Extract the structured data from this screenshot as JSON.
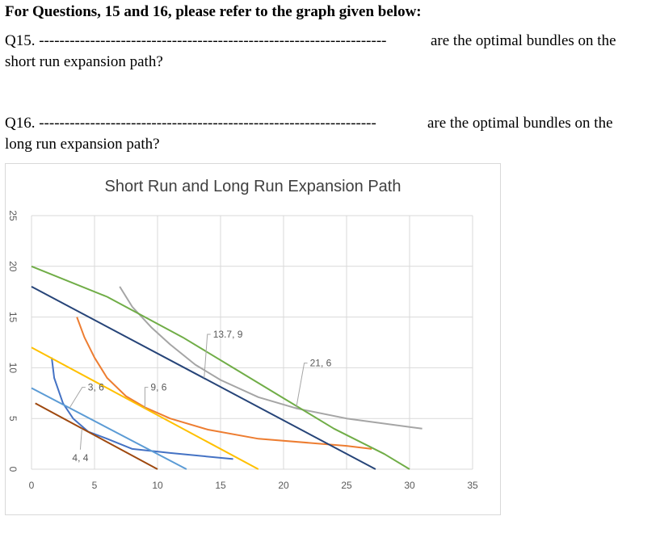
{
  "document": {
    "heading": "For Questions, 15 and 16, please refer to the graph given below:",
    "q15": {
      "number": "Q15.",
      "blank": "--------------------------------------------------------------------",
      "suffix": " are the optimal bundles on the",
      "continuation": "short run expansion path?"
    },
    "q16": {
      "number": "Q16.",
      "blank": "------------------------------------------------------------------",
      "suffix": " are the optimal bundles on the",
      "continuation": "long run expansion path?"
    }
  },
  "chart_data": {
    "type": "line",
    "title": "Short Run and Long Run Expansion Path",
    "xlabel": "",
    "ylabel": "",
    "xlim": [
      0,
      35
    ],
    "ylim": [
      0,
      25
    ],
    "x_ticks": [
      0,
      5,
      10,
      15,
      20,
      25,
      30,
      35
    ],
    "y_ticks": [
      0,
      5,
      10,
      15,
      20,
      25
    ],
    "grid": true,
    "legend": "none",
    "series": [
      {
        "color": "#4472c4",
        "points": [
          [
            1.6,
            11
          ],
          [
            1.8,
            9
          ],
          [
            2.5,
            6.5
          ],
          [
            3.3,
            5
          ],
          [
            4.5,
            3.7
          ],
          [
            6,
            3
          ],
          [
            8,
            2
          ],
          [
            11,
            1.6
          ],
          [
            16,
            1
          ]
        ]
      },
      {
        "color": "#ed7d31",
        "points": [
          [
            3.6,
            15
          ],
          [
            4.2,
            13
          ],
          [
            5,
            11
          ],
          [
            6,
            9
          ],
          [
            7.5,
            7.2
          ],
          [
            9,
            6.1
          ],
          [
            11,
            5
          ],
          [
            14,
            3.9
          ],
          [
            18,
            3
          ],
          [
            25,
            2.3
          ],
          [
            27,
            2
          ]
        ]
      },
      {
        "color": "#a5a5a5",
        "points": [
          [
            7,
            18
          ],
          [
            8,
            16
          ],
          [
            9.5,
            14
          ],
          [
            11,
            12.3
          ],
          [
            13,
            10.3
          ],
          [
            15,
            8.8
          ],
          [
            18,
            7.1
          ],
          [
            21,
            6
          ],
          [
            25,
            5
          ],
          [
            31,
            4
          ]
        ]
      },
      {
        "color": "#ffc000",
        "points": [
          [
            0,
            12
          ],
          [
            18,
            0
          ]
        ]
      },
      {
        "color": "#5b9bd5",
        "points": [
          [
            0,
            8
          ],
          [
            12.3,
            0
          ]
        ]
      },
      {
        "color": "#9e480e",
        "points": [
          [
            0.3,
            6.5
          ],
          [
            10,
            0
          ]
        ]
      },
      {
        "color": "#264478",
        "points": [
          [
            0,
            18
          ],
          [
            27.3,
            0
          ]
        ]
      },
      {
        "color": "#70ad47",
        "points": [
          [
            0,
            20
          ],
          [
            6,
            17
          ],
          [
            12,
            13
          ],
          [
            16,
            10
          ],
          [
            20,
            7
          ],
          [
            24,
            4
          ],
          [
            28,
            1.5
          ],
          [
            30,
            0
          ]
        ]
      }
    ],
    "annotations": [
      {
        "label": "3, 6",
        "point": [
          3,
          6
        ]
      },
      {
        "label": "4, 4",
        "point": [
          4,
          4
        ]
      },
      {
        "label": "9, 6",
        "point": [
          9,
          6
        ]
      },
      {
        "label": "13.7, 9",
        "point": [
          13.7,
          9
        ]
      },
      {
        "label": "21, 6",
        "point": [
          21,
          6
        ]
      }
    ],
    "colors": {
      "grid": "#d9d9d9",
      "text": "#595959",
      "leader": "#a6a6a6"
    }
  }
}
